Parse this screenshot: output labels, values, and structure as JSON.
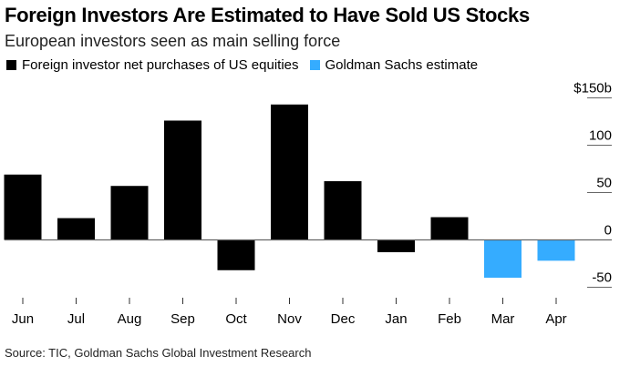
{
  "header": {
    "title": "Foreign Investors Are Estimated to Have Sold US Stocks",
    "subtitle": "European investors seen as main selling force"
  },
  "legend": [
    {
      "label": "Foreign investor net purchases of US equities",
      "color": "#000000"
    },
    {
      "label": "Goldman Sachs estimate",
      "color": "#35ACFF"
    }
  ],
  "footer": {
    "source": "Source: TIC, Goldman Sachs Global Investment Research"
  },
  "chart_data": {
    "type": "bar",
    "title": "Foreign Investors Are Estimated to Have Sold US Stocks",
    "subtitle": "European investors seen as main selling force",
    "xlabel": "",
    "ylabel": "",
    "y_unit_label": "$150b",
    "categories": [
      "Jun",
      "Jul",
      "Aug",
      "Sep",
      "Oct",
      "Nov",
      "Dec",
      "Jan",
      "Feb",
      "Mar",
      "Apr"
    ],
    "series": [
      {
        "name": "Foreign investor net purchases of US equities",
        "color": "#000000",
        "values": [
          69,
          23,
          57,
          126,
          -32,
          143,
          62,
          -13,
          24,
          null,
          null
        ]
      },
      {
        "name": "Goldman Sachs estimate",
        "color": "#35ACFF",
        "values": [
          null,
          null,
          null,
          null,
          null,
          null,
          null,
          null,
          null,
          -40,
          -22
        ]
      }
    ],
    "yticks": [
      {
        "value": 150,
        "label": "$150b"
      },
      {
        "value": 100,
        "label": "100"
      },
      {
        "value": 50,
        "label": "50"
      },
      {
        "value": 0,
        "label": "0"
      },
      {
        "value": -50,
        "label": "-50"
      }
    ],
    "ylim": [
      -50,
      150
    ],
    "legend_position": "top-left",
    "grid": false
  }
}
